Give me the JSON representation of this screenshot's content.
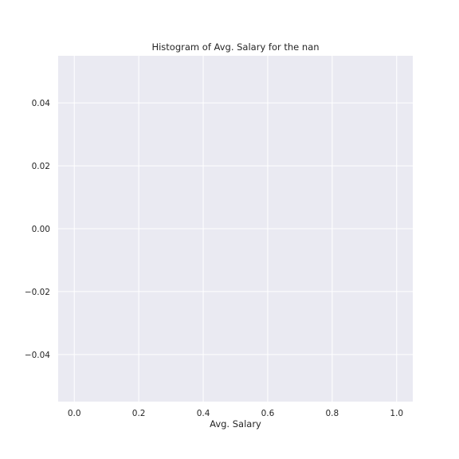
{
  "chart_data": {
    "type": "bar",
    "title": "Histogram of Avg. Salary for the nan",
    "xlabel": "Avg. Salary",
    "ylabel": "",
    "x": [],
    "values": [],
    "xlim": [
      -0.05,
      1.05
    ],
    "ylim": [
      -0.055,
      0.055
    ],
    "xticks": [
      0.0,
      0.2,
      0.4,
      0.6,
      0.8,
      1.0
    ],
    "xtick_labels": [
      "0.0",
      "0.2",
      "0.4",
      "0.6",
      "0.8",
      "1.0"
    ],
    "yticks": [
      0.04,
      0.02,
      0.0,
      -0.02,
      -0.04
    ],
    "ytick_labels": [
      "0.04",
      "0.02",
      "0.00",
      "−0.02",
      "−0.04"
    ],
    "grid": true,
    "legend": "none",
    "colors": {
      "plot_background": "#eaeaf2",
      "grid": "#ffffff",
      "text": "#262626"
    }
  }
}
